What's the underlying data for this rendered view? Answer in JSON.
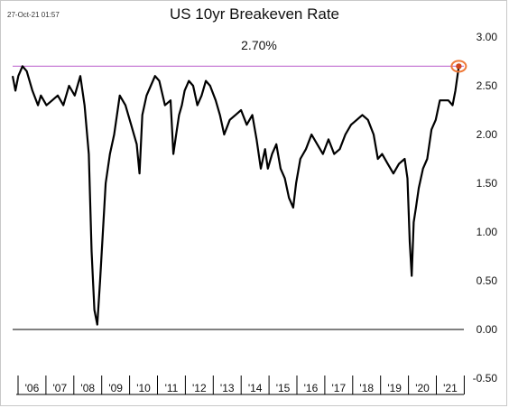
{
  "header": {
    "timestamp": "27-Oct-21 01:57",
    "title": "US 10yr Breakeven Rate"
  },
  "chart_data": {
    "type": "line",
    "title": "US 10yr Breakeven Rate",
    "annotation": "2.70%",
    "reference_line": {
      "value": 2.7,
      "color": "#c77dd6"
    },
    "marker": {
      "x": 2021.82,
      "value": 2.7,
      "fill": "#d0451b",
      "ring": "#ef7a3a"
    },
    "line_color": "#000000",
    "zero_line_color": "#000000",
    "ylim": [
      -0.5,
      3.0
    ],
    "y_ticks": [
      -0.5,
      0.0,
      0.5,
      1.0,
      1.5,
      2.0,
      2.5,
      3.0
    ],
    "y_tick_labels": [
      "-0.50",
      "0.00",
      "0.50",
      "1.00",
      "1.50",
      "2.00",
      "2.50",
      "3.00"
    ],
    "xlim": [
      2006.0,
      2022.0
    ],
    "x_tick_labels": [
      "'06",
      "'07",
      "'08",
      "'09",
      "'10",
      "'11",
      "'12",
      "'13",
      "'14",
      "'15",
      "'16",
      "'17",
      "'18",
      "'19",
      "'20",
      "'21"
    ],
    "grid": false,
    "series": [
      {
        "x": [
          2006.0,
          2006.1,
          2006.2,
          2006.35,
          2006.5,
          2006.7,
          2006.9,
          2007.0,
          2007.2,
          2007.4,
          2007.6,
          2007.8,
          2008.0,
          2008.2,
          2008.4,
          2008.55,
          2008.7,
          2008.8,
          2008.9,
          2009.0,
          2009.1,
          2009.2,
          2009.3,
          2009.45,
          2009.6,
          2009.8,
          2010.0,
          2010.2,
          2010.4,
          2010.5,
          2010.6,
          2010.75,
          2010.9,
          2011.05,
          2011.2,
          2011.4,
          2011.6,
          2011.7,
          2011.8,
          2011.9,
          2012.0,
          2012.1,
          2012.25,
          2012.4,
          2012.55,
          2012.7,
          2012.85,
          2013.0,
          2013.2,
          2013.35,
          2013.5,
          2013.7,
          2013.9,
          2014.1,
          2014.3,
          2014.5,
          2014.65,
          2014.8,
          2014.95,
          2015.05,
          2015.2,
          2015.35,
          2015.5,
          2015.65,
          2015.8,
          2015.95,
          2016.05,
          2016.2,
          2016.4,
          2016.6,
          2016.8,
          2017.0,
          2017.2,
          2017.4,
          2017.6,
          2017.8,
          2018.0,
          2018.2,
          2018.4,
          2018.6,
          2018.8,
          2018.95,
          2019.1,
          2019.3,
          2019.5,
          2019.7,
          2019.9,
          2020.0,
          2020.08,
          2020.15,
          2020.22,
          2020.3,
          2020.4,
          2020.55,
          2020.7,
          2020.85,
          2021.0,
          2021.15,
          2021.3,
          2021.45,
          2021.6,
          2021.7,
          2021.82
        ],
        "values": [
          2.6,
          2.45,
          2.6,
          2.7,
          2.65,
          2.45,
          2.3,
          2.4,
          2.3,
          2.35,
          2.4,
          2.3,
          2.5,
          2.4,
          2.6,
          2.3,
          1.8,
          0.8,
          0.2,
          0.05,
          0.5,
          1.0,
          1.5,
          1.8,
          2.0,
          2.4,
          2.3,
          2.1,
          1.9,
          1.6,
          2.2,
          2.4,
          2.5,
          2.6,
          2.55,
          2.3,
          2.35,
          1.8,
          2.0,
          2.2,
          2.3,
          2.45,
          2.55,
          2.5,
          2.3,
          2.4,
          2.55,
          2.5,
          2.35,
          2.2,
          2.0,
          2.15,
          2.2,
          2.25,
          2.1,
          2.2,
          1.95,
          1.65,
          1.85,
          1.65,
          1.8,
          1.9,
          1.65,
          1.55,
          1.35,
          1.25,
          1.5,
          1.75,
          1.85,
          2.0,
          1.9,
          1.8,
          1.95,
          1.8,
          1.85,
          2.0,
          2.1,
          2.15,
          2.2,
          2.15,
          2.0,
          1.75,
          1.8,
          1.7,
          1.6,
          1.7,
          1.75,
          1.55,
          0.9,
          0.55,
          1.1,
          1.25,
          1.45,
          1.65,
          1.75,
          2.05,
          2.15,
          2.35,
          2.35,
          2.35,
          2.3,
          2.45,
          2.7
        ]
      }
    ]
  }
}
